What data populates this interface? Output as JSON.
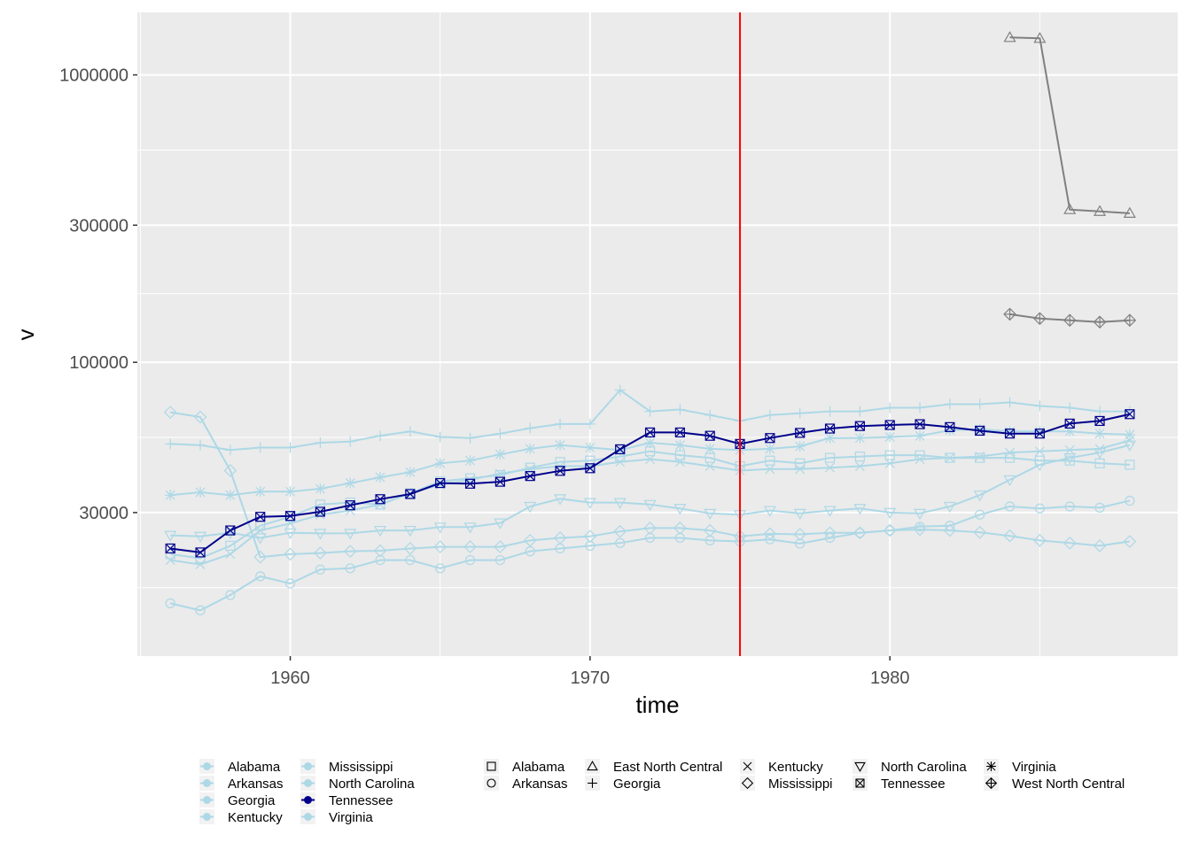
{
  "chart_data": {
    "type": "line",
    "title": "",
    "xlabel": "time",
    "ylabel": "v",
    "y_scale": "log",
    "xlim": [
      1954.9,
      1989.6
    ],
    "ylim": [
      9500,
      1650000
    ],
    "x_ticks": [
      1960,
      1970,
      1980
    ],
    "y_ticks": [
      30000,
      100000,
      300000,
      1000000
    ],
    "x_tick_labels": [
      "1960",
      "1970",
      "1980"
    ],
    "y_tick_labels": [
      "30000",
      "100000",
      "300000",
      "1000000"
    ],
    "grid": true,
    "vertical_reference_line": {
      "x": 1975,
      "color": "#ff0000"
    },
    "colors": {
      "highlight": "#00008b",
      "context": "#add8e6",
      "region": "#808080",
      "reference": "#ff0000",
      "panel": "#ebebeb",
      "grid": "#ffffff"
    },
    "series": [
      {
        "name": "Alabama",
        "role": "context",
        "shape": "square",
        "x": [
          1956,
          1957,
          1958,
          1959,
          1960,
          1961,
          1962,
          1963,
          1964,
          1965,
          1966,
          1967,
          1968,
          1969,
          1970,
          1971,
          1972,
          1973,
          1974,
          1975,
          1976,
          1977,
          1978,
          1979,
          1980,
          1981,
          1982,
          1983,
          1984,
          1985,
          1986,
          1987,
          1988
        ],
        "y": [
          21500,
          20800,
          23000,
          27000,
          29000,
          32000,
          32500,
          32000,
          35000,
          38500,
          39500,
          40500,
          43000,
          45000,
          45500,
          47000,
          49000,
          47500,
          46500,
          43500,
          45500,
          44500,
          46500,
          47000,
          47500,
          47500,
          46500,
          46500,
          46500,
          45500,
          45500,
          44500,
          44000
        ]
      },
      {
        "name": "Arkansas",
        "role": "context",
        "shape": "circle",
        "x": [
          1956,
          1957,
          1958,
          1959,
          1960,
          1961,
          1962,
          1963,
          1964,
          1965,
          1966,
          1967,
          1968,
          1969,
          1970,
          1971,
          1972,
          1973,
          1974,
          1975,
          1976,
          1977,
          1978,
          1979,
          1980,
          1981,
          1982,
          1983,
          1984,
          1985,
          1986,
          1987,
          1988
        ],
        "y": [
          14500,
          13700,
          15500,
          18000,
          17000,
          19000,
          19200,
          20500,
          20500,
          19200,
          20500,
          20500,
          22000,
          22500,
          23000,
          23500,
          24500,
          24500,
          24000,
          23800,
          24200,
          23400,
          24500,
          25500,
          26000,
          26800,
          27000,
          29500,
          31500,
          31000,
          31500,
          31200,
          33000
        ]
      },
      {
        "name": "Georgia",
        "role": "context",
        "shape": "plus",
        "x": [
          1956,
          1957,
          1958,
          1959,
          1960,
          1961,
          1962,
          1963,
          1964,
          1965,
          1966,
          1967,
          1968,
          1969,
          1970,
          1971,
          1972,
          1973,
          1974,
          1975,
          1976,
          1977,
          1978,
          1979,
          1980,
          1981,
          1982,
          1983,
          1984,
          1985,
          1986,
          1987,
          1988
        ],
        "y": [
          52000,
          51500,
          49500,
          50500,
          50500,
          52500,
          53000,
          55500,
          57500,
          55000,
          54500,
          56500,
          59000,
          61000,
          61000,
          80000,
          67500,
          68500,
          65500,
          62500,
          65500,
          66500,
          67500,
          67500,
          69500,
          69500,
          71500,
          71500,
          72500,
          70500,
          69500,
          67500,
          67500
        ]
      },
      {
        "name": "Kentucky",
        "role": "context",
        "shape": "cross",
        "x": [
          1956,
          1957,
          1958,
          1959,
          1960,
          1961,
          1962,
          1963,
          1964,
          1965,
          1966,
          1967,
          1968,
          1969,
          1970,
          1971,
          1972,
          1973,
          1974,
          1975,
          1976,
          1977,
          1978,
          1979,
          1980,
          1981,
          1982,
          1983,
          1984,
          1985,
          1986,
          1987,
          1988
        ],
        "y": [
          20500,
          19800,
          21500,
          26000,
          27500,
          29500,
          30500,
          32000,
          35000,
          37500,
          39000,
          41000,
          42500,
          43500,
          43500,
          45000,
          46000,
          45000,
          43500,
          42000,
          42500,
          42500,
          43000,
          43500,
          44500,
          46000,
          46500,
          47000,
          48500,
          49000,
          49500,
          50000,
          53500
        ]
      },
      {
        "name": "Mississippi",
        "role": "context",
        "shape": "diamond",
        "x": [
          1956,
          1957,
          1958,
          1959,
          1960,
          1961,
          1962,
          1963,
          1964,
          1965,
          1966,
          1967,
          1968,
          1969,
          1970,
          1971,
          1972,
          1973,
          1974,
          1975,
          1976,
          1977,
          1978,
          1979,
          1980,
          1981,
          1982,
          1983,
          1984,
          1985,
          1986,
          1987,
          1988
        ],
        "y": [
          67000,
          64500,
          42000,
          21000,
          21500,
          21700,
          22000,
          22100,
          22500,
          22800,
          22800,
          22800,
          24000,
          24500,
          24800,
          25800,
          26500,
          26500,
          26000,
          24800,
          25300,
          25200,
          25500,
          25500,
          26000,
          26200,
          26000,
          25600,
          24900,
          24000,
          23500,
          23000,
          23800
        ]
      },
      {
        "name": "North Carolina",
        "role": "context",
        "shape": "triangle-down",
        "x": [
          1956,
          1957,
          1958,
          1959,
          1960,
          1961,
          1962,
          1963,
          1964,
          1965,
          1966,
          1967,
          1968,
          1969,
          1970,
          1971,
          1972,
          1973,
          1974,
          1975,
          1976,
          1977,
          1978,
          1979,
          1980,
          1981,
          1982,
          1983,
          1984,
          1985,
          1986,
          1987,
          1988
        ],
        "y": [
          25000,
          24800,
          25500,
          24500,
          25500,
          25400,
          25400,
          26000,
          26000,
          26700,
          26700,
          27600,
          31500,
          33500,
          32500,
          32500,
          32000,
          31000,
          29800,
          29500,
          30500,
          29800,
          30500,
          31000,
          30000,
          29800,
          31500,
          34500,
          39000,
          44000,
          46500,
          48500,
          51500
        ]
      },
      {
        "name": "Tennessee",
        "role": "highlight",
        "shape": "square-cross",
        "x": [
          1956,
          1957,
          1958,
          1959,
          1960,
          1961,
          1962,
          1963,
          1964,
          1965,
          1966,
          1967,
          1968,
          1969,
          1970,
          1971,
          1972,
          1973,
          1974,
          1975,
          1976,
          1977,
          1978,
          1979,
          1980,
          1981,
          1982,
          1983,
          1984,
          1985,
          1986,
          1987,
          1988
        ],
        "y": [
          22500,
          21800,
          26000,
          29000,
          29200,
          30200,
          31800,
          33400,
          34800,
          38000,
          37800,
          38400,
          40200,
          41900,
          42800,
          49800,
          57000,
          57000,
          55500,
          52000,
          54500,
          56800,
          58800,
          60000,
          60500,
          60900,
          59500,
          57800,
          56500,
          56500,
          61200,
          62500,
          66000
        ]
      },
      {
        "name": "Virginia",
        "role": "context",
        "shape": "asterisk",
        "x": [
          1956,
          1957,
          1958,
          1959,
          1960,
          1961,
          1962,
          1963,
          1964,
          1965,
          1966,
          1967,
          1968,
          1969,
          1970,
          1971,
          1972,
          1973,
          1974,
          1975,
          1976,
          1977,
          1978,
          1979,
          1980,
          1981,
          1982,
          1983,
          1984,
          1985,
          1986,
          1987,
          1988
        ],
        "y": [
          34500,
          35300,
          34500,
          35500,
          35500,
          36300,
          38000,
          39800,
          41500,
          44500,
          45500,
          47800,
          50000,
          51500,
          50500,
          49500,
          52500,
          51500,
          50000,
          49500,
          50000,
          51000,
          54500,
          54500,
          55000,
          55500,
          58000,
          58500,
          57500,
          57500,
          57500,
          56500,
          56000
        ]
      },
      {
        "name": "East North Central",
        "role": "region",
        "shape": "triangle",
        "x": [
          1984,
          1985,
          1986,
          1987,
          1988
        ],
        "y": [
          1350000,
          1340000,
          340000,
          335000,
          330000
        ]
      },
      {
        "name": "West North Central",
        "role": "region",
        "shape": "diamond-plus",
        "x": [
          1984,
          1985,
          1986,
          1987,
          1988
        ],
        "y": [
          147000,
          142000,
          140000,
          138000,
          140000
        ]
      }
    ],
    "legend": {
      "placement": "bottom",
      "color_title": "",
      "color_entries": [
        {
          "label": "Alabama",
          "color": "#add8e6"
        },
        {
          "label": "Arkansas",
          "color": "#add8e6"
        },
        {
          "label": "Georgia",
          "color": "#add8e6"
        },
        {
          "label": "Kentucky",
          "color": "#add8e6"
        },
        {
          "label": "Mississippi",
          "color": "#add8e6"
        },
        {
          "label": "North Carolina",
          "color": "#add8e6"
        },
        {
          "label": "Tennessee",
          "color": "#00008b"
        },
        {
          "label": "Virginia",
          "color": "#add8e6"
        }
      ],
      "shape_entries": [
        {
          "label": "Alabama",
          "shape": "square"
        },
        {
          "label": "Arkansas",
          "shape": "circle"
        },
        {
          "label": "East North Central",
          "shape": "triangle"
        },
        {
          "label": "Georgia",
          "shape": "plus"
        },
        {
          "label": "Kentucky",
          "shape": "cross"
        },
        {
          "label": "Mississippi",
          "shape": "diamond"
        },
        {
          "label": "North Carolina",
          "shape": "triangle-down"
        },
        {
          "label": "Tennessee",
          "shape": "square-cross"
        },
        {
          "label": "Virginia",
          "shape": "asterisk"
        },
        {
          "label": "West North Central",
          "shape": "diamond-plus"
        }
      ]
    }
  }
}
